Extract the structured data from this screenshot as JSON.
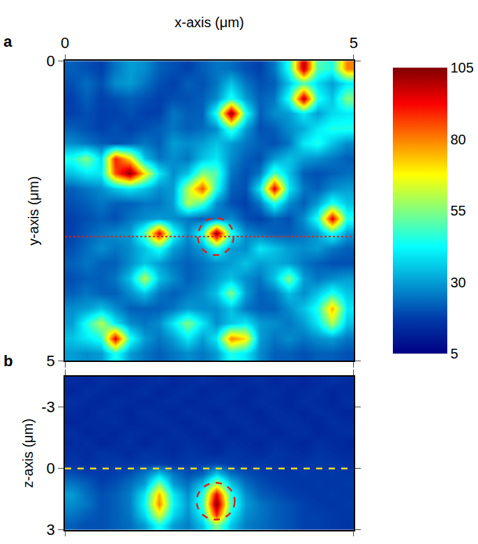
{
  "chart_data": [
    {
      "type": "heatmap",
      "panel": "a",
      "xlabel": "x-axis (μm)",
      "ylabel": "y-axis (μm)",
      "xlim": [
        0,
        5
      ],
      "xticks": [
        0,
        5
      ],
      "ylim": [
        0,
        5
      ],
      "yticks": [
        0,
        5
      ],
      "x": [
        0.125,
        0.375,
        0.625,
        0.875,
        1.125,
        1.375,
        1.625,
        1.875,
        2.125,
        2.375,
        2.625,
        2.875,
        3.125,
        3.375,
        3.625,
        3.875,
        4.125,
        4.375,
        4.625,
        4.875
      ],
      "y": [
        0.125,
        0.375,
        0.625,
        0.875,
        1.125,
        1.375,
        1.625,
        1.875,
        2.125,
        2.375,
        2.625,
        2.875,
        3.125,
        3.375,
        3.625,
        3.875,
        4.125,
        4.375,
        4.625,
        4.875
      ],
      "cells": [
        [
          22,
          20,
          18,
          25,
          30,
          28,
          22,
          20,
          18,
          22,
          25,
          24,
          20,
          18,
          25,
          45,
          100,
          50,
          45,
          80
        ],
        [
          20,
          24,
          20,
          28,
          30,
          25,
          20,
          18,
          22,
          20,
          25,
          35,
          25,
          20,
          22,
          35,
          50,
          38,
          30,
          40
        ],
        [
          18,
          22,
          18,
          20,
          22,
          20,
          18,
          20,
          20,
          22,
          28,
          45,
          30,
          22,
          25,
          45,
          100,
          45,
          35,
          55
        ],
        [
          18,
          20,
          18,
          18,
          20,
          18,
          18,
          25,
          22,
          22,
          45,
          105,
          45,
          22,
          28,
          30,
          40,
          30,
          38,
          40
        ],
        [
          22,
          20,
          18,
          20,
          18,
          20,
          22,
          25,
          22,
          24,
          28,
          50,
          30,
          20,
          22,
          28,
          32,
          40,
          45,
          45
        ],
        [
          28,
          25,
          22,
          20,
          22,
          25,
          22,
          30,
          28,
          30,
          35,
          30,
          25,
          22,
          20,
          25,
          40,
          45,
          35,
          28
        ],
        [
          45,
          55,
          38,
          90,
          70,
          35,
          25,
          28,
          25,
          35,
          40,
          28,
          22,
          20,
          30,
          35,
          30,
          28,
          25,
          22
        ],
        [
          35,
          40,
          40,
          85,
          105,
          70,
          40,
          28,
          35,
          55,
          50,
          25,
          20,
          25,
          50,
          35,
          22,
          20,
          22,
          24
        ],
        [
          22,
          25,
          28,
          35,
          40,
          35,
          28,
          30,
          60,
          85,
          45,
          22,
          20,
          40,
          95,
          40,
          25,
          22,
          28,
          30
        ],
        [
          20,
          22,
          25,
          22,
          22,
          25,
          25,
          30,
          60,
          50,
          28,
          20,
          18,
          25,
          45,
          28,
          22,
          30,
          45,
          35
        ],
        [
          18,
          20,
          22,
          20,
          25,
          28,
          30,
          28,
          25,
          22,
          25,
          28,
          20,
          18,
          22,
          20,
          28,
          45,
          95,
          45
        ],
        [
          18,
          22,
          25,
          28,
          30,
          50,
          95,
          45,
          28,
          45,
          105,
          45,
          28,
          25,
          22,
          22,
          25,
          30,
          45,
          30
        ],
        [
          20,
          24,
          28,
          25,
          28,
          35,
          45,
          30,
          25,
          30,
          45,
          30,
          28,
          40,
          35,
          30,
          28,
          30,
          25,
          22
        ],
        [
          22,
          25,
          22,
          22,
          28,
          35,
          30,
          25,
          22,
          25,
          28,
          30,
          35,
          30,
          32,
          30,
          25,
          22,
          20,
          20
        ],
        [
          20,
          22,
          22,
          25,
          35,
          60,
          35,
          28,
          22,
          25,
          30,
          35,
          28,
          25,
          35,
          55,
          30,
          25,
          28,
          30
        ],
        [
          22,
          25,
          22,
          22,
          28,
          35,
          25,
          22,
          25,
          28,
          35,
          55,
          30,
          22,
          25,
          35,
          28,
          35,
          45,
          35
        ],
        [
          28,
          30,
          35,
          28,
          22,
          22,
          22,
          25,
          30,
          28,
          28,
          35,
          25,
          22,
          22,
          28,
          35,
          45,
          75,
          40
        ],
        [
          30,
          45,
          60,
          40,
          28,
          25,
          28,
          40,
          55,
          40,
          28,
          35,
          40,
          30,
          28,
          25,
          30,
          40,
          60,
          35
        ],
        [
          35,
          40,
          45,
          95,
          45,
          30,
          25,
          30,
          40,
          30,
          40,
          80,
          70,
          30,
          25,
          28,
          25,
          28,
          30,
          25
        ],
        [
          30,
          28,
          30,
          45,
          30,
          25,
          22,
          25,
          28,
          25,
          30,
          45,
          40,
          28,
          22,
          22,
          20,
          22,
          22,
          20
        ]
      ],
      "colorbar": {
        "range": [
          5,
          105
        ],
        "ticks": [
          5,
          30,
          55,
          80,
          105
        ]
      },
      "circle": {
        "x": 2.61,
        "y": 2.93,
        "rx": 0.31,
        "ry": 0.31,
        "color": "#e0201b",
        "line_style": "dash"
      },
      "profile_line": {
        "y": 2.93,
        "color": "#e0201b",
        "line_style": "dot"
      }
    },
    {
      "type": "heatmap",
      "panel": "b",
      "ylabel": "z-axis (μm)",
      "tick_labels": "y",
      "xlim": [
        0,
        5
      ],
      "xticks": [
        0,
        5
      ],
      "ylim": [
        -4.5,
        3
      ],
      "yticks": [
        -3,
        0,
        3
      ],
      "x": [
        0.125,
        0.375,
        0.625,
        0.875,
        1.125,
        1.375,
        1.625,
        1.875,
        2.125,
        2.375,
        2.625,
        2.875,
        3.125,
        3.375,
        3.625,
        3.875,
        4.125,
        4.375,
        4.625,
        4.875
      ],
      "y": [
        -4.25,
        -3.75,
        -3.25,
        -2.75,
        -2.25,
        -1.75,
        -1.25,
        -0.75,
        -0.25,
        0.25,
        0.75,
        1.25,
        1.75,
        2.25,
        2.75
      ],
      "cells": [
        [
          14,
          13,
          15,
          14,
          13,
          14,
          15,
          13,
          14,
          15,
          14,
          13,
          14,
          15,
          13,
          14,
          13,
          14,
          15,
          14
        ],
        [
          13,
          15,
          14,
          13,
          14,
          15,
          13,
          14,
          15,
          13,
          14,
          15,
          13,
          14,
          15,
          13,
          14,
          15,
          13,
          14
        ],
        [
          15,
          14,
          13,
          15,
          14,
          13,
          14,
          15,
          13,
          14,
          15,
          14,
          13,
          15,
          14,
          13,
          15,
          14,
          13,
          15
        ],
        [
          14,
          13,
          15,
          14,
          13,
          15,
          14,
          13,
          15,
          14,
          13,
          15,
          14,
          13,
          15,
          14,
          13,
          15,
          14,
          13
        ],
        [
          13,
          14,
          14,
          15,
          13,
          14,
          15,
          14,
          13,
          15,
          14,
          14,
          15,
          13,
          14,
          15,
          14,
          13,
          15,
          14
        ],
        [
          15,
          13,
          14,
          13,
          15,
          14,
          13,
          15,
          14,
          13,
          15,
          13,
          14,
          15,
          13,
          14,
          15,
          13,
          14,
          15
        ],
        [
          14,
          15,
          13,
          14,
          15,
          13,
          15,
          14,
          15,
          14,
          13,
          15,
          14,
          13,
          15,
          14,
          13,
          15,
          14,
          13
        ],
        [
          15,
          14,
          16,
          15,
          14,
          16,
          15,
          14,
          16,
          15,
          14,
          16,
          15,
          14,
          16,
          15,
          14,
          16,
          15,
          14
        ],
        [
          16,
          15,
          16,
          17,
          16,
          17,
          18,
          16,
          17,
          18,
          19,
          17,
          16,
          17,
          16,
          15,
          16,
          17,
          16,
          15
        ],
        [
          20,
          18,
          17,
          18,
          20,
          25,
          35,
          25,
          20,
          22,
          35,
          24,
          20,
          18,
          17,
          16,
          17,
          16,
          17,
          16
        ],
        [
          25,
          22,
          18,
          20,
          24,
          30,
          55,
          30,
          24,
          35,
          60,
          35,
          24,
          20,
          18,
          17,
          16,
          17,
          16,
          17
        ],
        [
          30,
          24,
          20,
          22,
          26,
          40,
          75,
          40,
          28,
          45,
          95,
          45,
          28,
          22,
          20,
          18,
          17,
          16,
          17,
          16
        ],
        [
          28,
          25,
          20,
          22,
          26,
          42,
          80,
          42,
          30,
          48,
          105,
          48,
          30,
          25,
          22,
          20,
          18,
          17,
          16,
          17
        ],
        [
          25,
          22,
          20,
          22,
          25,
          38,
          65,
          38,
          28,
          42,
          90,
          42,
          28,
          25,
          22,
          20,
          18,
          18,
          17,
          16
        ],
        [
          22,
          20,
          20,
          22,
          24,
          30,
          45,
          30,
          26,
          35,
          55,
          35,
          26,
          24,
          22,
          20,
          18,
          18,
          17,
          16
        ]
      ],
      "colorbar": {
        "range": [
          5,
          105
        ],
        "ticks": [
          5,
          30,
          55,
          80,
          105
        ]
      },
      "circle": {
        "x": 2.61,
        "y": 1.6,
        "rx": 0.33,
        "ry": 0.9,
        "color": "#e0201b",
        "line_style": "dash"
      },
      "focus_line": {
        "y": 0,
        "color": "#f2e21a",
        "line_style": "dash"
      }
    }
  ]
}
